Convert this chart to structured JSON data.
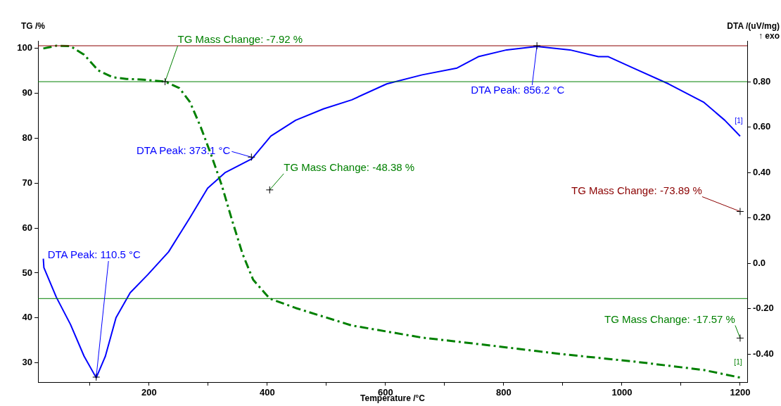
{
  "chart_data": {
    "type": "line",
    "xlabel": "Temperature /°C",
    "ylabel": "TG /%",
    "y2label": "DTA /(uV/mg)\n↑ exo",
    "xlim": [
      12,
      1212
    ],
    "xticks": [
      {
        "value": 100,
        "label": null
      },
      200,
      {
        "value": 300,
        "label": null
      },
      400,
      {
        "value": 500,
        "label": null
      },
      600,
      {
        "value": 700,
        "label": null
      },
      800,
      {
        "value": 900,
        "label": null
      },
      1000,
      {
        "value": 1100,
        "label": null
      },
      1200
    ],
    "ylim": [
      25.7,
      101.7
    ],
    "yticks": [
      30,
      40,
      50,
      60,
      70,
      80,
      90,
      100
    ],
    "y2lim": [
      -0.524,
      0.98
    ],
    "y2ticks": [
      {
        "value": -0.4,
        "label": "-0.40"
      },
      {
        "value": -0.2,
        "label": "-0.20"
      },
      {
        "value": 0,
        "label": "0.0"
      },
      {
        "value": 0.2,
        "label": "0.20"
      },
      {
        "value": 0.4,
        "label": "0.40"
      },
      {
        "value": 0.6,
        "label": "0.60"
      },
      {
        "value": 0.8,
        "label": "0.80"
      }
    ],
    "grid": false,
    "legend": false,
    "marker": "none",
    "series": [
      {
        "color": "#008000",
        "line_style": "dashed",
        "x": [
          21,
          43,
          67,
          90,
          114,
          138,
          162,
          186,
          227,
          251,
          269,
          287,
          305,
          323,
          340,
          358,
          376,
          404,
          448,
          543,
          662,
          781,
          900,
          1019,
          1138,
          1200
        ],
        "values": [
          100,
          100.6,
          100.5,
          98.6,
          95.1,
          93.6,
          93.2,
          93.1,
          92.6,
          91.2,
          88.1,
          82.6,
          76.3,
          69.5,
          61.9,
          54.3,
          48.5,
          44.3,
          42.2,
          38.3,
          35.6,
          33.8,
          31.9,
          30.3,
          28.4,
          26.7
        ]
      },
      {
        "color": "#0000ff",
        "line_style": "solid",
        "axis": "y2",
        "x": [
          21,
          22,
          43,
          67,
          90,
          110.5,
          126,
          144,
          168,
          198,
          233,
          269,
          299,
          329,
          374,
          406,
          448,
          495,
          543,
          602,
          662,
          721,
          757,
          805,
          856.2,
          912,
          960,
          977,
          1019,
          1079,
          1138,
          1174,
          1200
        ],
        "values": [
          0.02,
          -0.02,
          -0.15,
          -0.27,
          -0.41,
          -0.505,
          -0.41,
          -0.24,
          -0.13,
          -0.05,
          0.05,
          0.2,
          0.33,
          0.4,
          0.46,
          0.56,
          0.63,
          0.68,
          0.72,
          0.79,
          0.83,
          0.86,
          0.91,
          0.94,
          0.955,
          0.94,
          0.91,
          0.91,
          0.86,
          0.79,
          0.71,
          0.63,
          0.56
        ]
      }
    ],
    "ref_lines": [
      {
        "axis": "y",
        "value": 100.6,
        "color": "#8b0000"
      },
      {
        "axis": "y",
        "value": 92.6,
        "color": "#008000"
      },
      {
        "axis": "y",
        "value": 44.3,
        "color": "#008000"
      }
    ],
    "annotations": [
      {
        "text": "TG Mass Change: -7.92 %",
        "x": 227,
        "y": 92.6
      },
      {
        "text": "TG Mass Change: -48.38 %",
        "x": 404,
        "y": 68.5
      },
      {
        "text": "TG Mass Change: -17.57 %",
        "x": 1200,
        "y": 35.5
      },
      {
        "text": "TG Mass Change: -73.89 %",
        "x": 1200,
        "y": 63.7
      },
      {
        "text": "DTA Peak: 110.5 °C",
        "x": 110.5,
        "y": 26.8
      },
      {
        "text": "DTA Peak: 373.1 °C",
        "x": 373.1,
        "y": 75.8
      },
      {
        "text": "DTA Peak: 856.2 °C",
        "x": 856.2,
        "y": 100.6
      },
      {
        "text": "[1]",
        "x": 1200,
        "y": 80.5
      },
      {
        "text": "[1]",
        "x": 1200,
        "y": 26.7
      }
    ]
  }
}
